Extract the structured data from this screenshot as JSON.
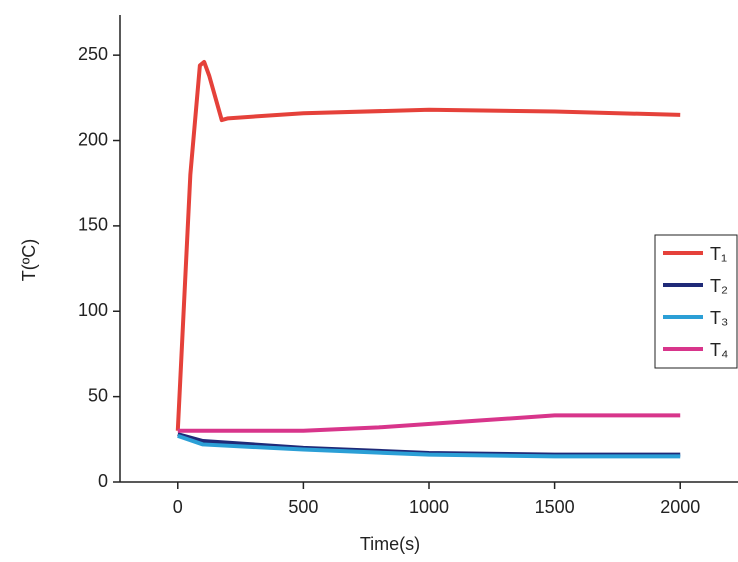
{
  "chart_data": {
    "type": "line",
    "xlabel": "Time(s)",
    "ylabel": "T(ºC)",
    "xlim": [
      -230,
      2230
    ],
    "ylim": [
      0,
      270
    ],
    "xticks": [
      0,
      500,
      1000,
      1500,
      2000
    ],
    "yticks": [
      0,
      50,
      100,
      150,
      200,
      250
    ],
    "legend": "right",
    "series": [
      {
        "name": "T₁",
        "color": "#e5413a",
        "x": [
          0,
          50,
          88,
          105,
          125,
          175,
          200,
          500,
          1000,
          1500,
          2000
        ],
        "values": [
          30,
          180,
          244,
          246,
          238,
          212,
          213,
          216,
          218,
          217,
          215
        ]
      },
      {
        "name": "T₂",
        "color": "#1f2a78",
        "x": [
          0,
          100,
          500,
          1000,
          1500,
          2000
        ],
        "values": [
          28,
          24,
          20,
          17,
          16,
          16
        ]
      },
      {
        "name": "T₃",
        "color": "#2b9fd6",
        "x": [
          0,
          100,
          500,
          1000,
          1500,
          2000
        ],
        "values": [
          27,
          22,
          19,
          16,
          15,
          15
        ]
      },
      {
        "name": "T₄",
        "color": "#d8358b",
        "x": [
          0,
          500,
          800,
          1200,
          1500,
          2000
        ],
        "values": [
          30,
          30,
          32,
          36,
          39,
          39
        ]
      }
    ]
  }
}
